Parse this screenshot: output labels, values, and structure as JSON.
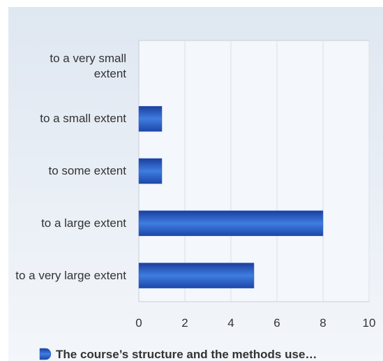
{
  "chart_data": {
    "type": "bar",
    "orientation": "horizontal",
    "categories": [
      "to a very small extent",
      "to a small extent",
      "to some extent",
      "to a large extent",
      "to a very large extent"
    ],
    "series": [
      {
        "name": "The course’s structure and the methods use…",
        "color": "#2a5cc8",
        "values": [
          0,
          1,
          1,
          8,
          5
        ]
      }
    ],
    "xlim": [
      0,
      10
    ],
    "xticks": [
      0,
      2,
      4,
      6,
      8,
      10
    ],
    "grid": true,
    "legend": "bottom"
  }
}
